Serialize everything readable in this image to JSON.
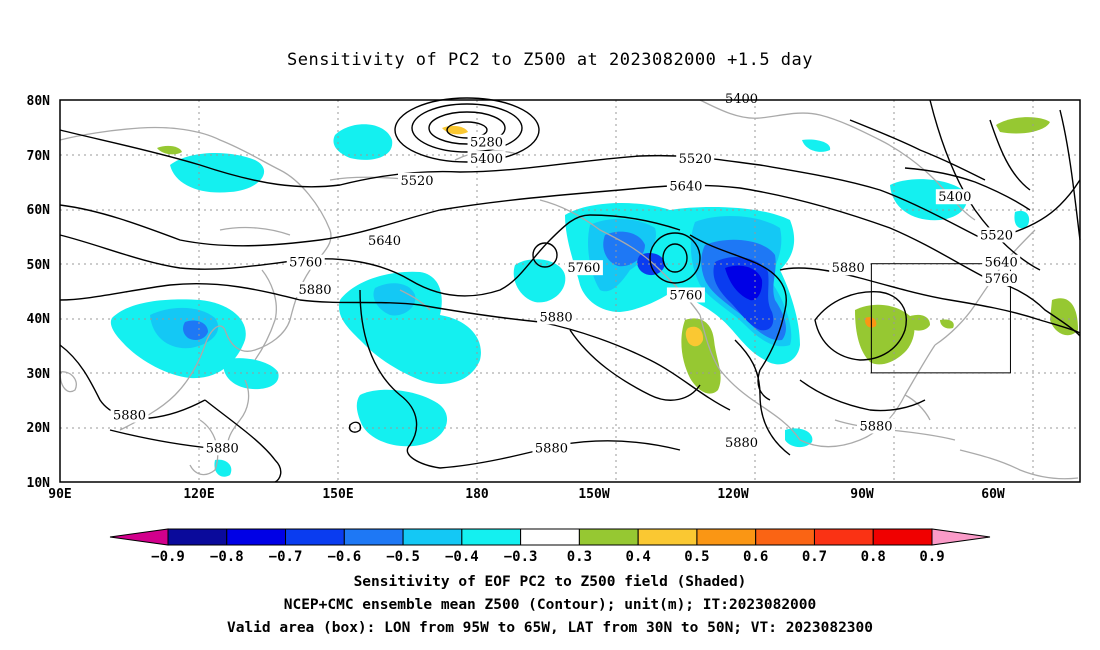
{
  "title": "Sensitivity of PC2 to Z500 at 2023082000 +1.5 day",
  "map": {
    "lat_labels": [
      "80N",
      "70N",
      "60N",
      "50N",
      "40N",
      "30N",
      "20N",
      "10N"
    ],
    "lon_labels": [
      "90E",
      "120E",
      "150E",
      "180",
      "150W",
      "120W",
      "90W",
      "60W"
    ],
    "lon_extent": [
      90,
      310
    ],
    "lat_extent": [
      10,
      80
    ],
    "contour_labels": [
      {
        "text": "5400",
        "lon": 237,
        "lat": 80
      },
      {
        "text": "5280",
        "lon": 182,
        "lat": 72
      },
      {
        "text": "5400",
        "lon": 182,
        "lat": 69
      },
      {
        "text": "5520",
        "lon": 227,
        "lat": 69
      },
      {
        "text": "5520",
        "lon": 167,
        "lat": 65
      },
      {
        "text": "5640",
        "lon": 225,
        "lat": 64
      },
      {
        "text": "5400",
        "lon": 283,
        "lat": 62
      },
      {
        "text": "5640",
        "lon": 160,
        "lat": 54
      },
      {
        "text": "5520",
        "lon": 292,
        "lat": 55
      },
      {
        "text": "5760",
        "lon": 143,
        "lat": 50
      },
      {
        "text": "5760",
        "lon": 203,
        "lat": 49
      },
      {
        "text": "5880",
        "lon": 260,
        "lat": 49
      },
      {
        "text": "5640",
        "lon": 293,
        "lat": 50
      },
      {
        "text": "5760",
        "lon": 225,
        "lat": 44
      },
      {
        "text": "5760",
        "lon": 293,
        "lat": 47
      },
      {
        "text": "5880",
        "lon": 145,
        "lat": 45
      },
      {
        "text": "5880",
        "lon": 197,
        "lat": 40
      },
      {
        "text": "5880",
        "lon": 105,
        "lat": 22
      },
      {
        "text": "5880",
        "lon": 125,
        "lat": 16
      },
      {
        "text": "5880",
        "lon": 196,
        "lat": 16
      },
      {
        "text": "5880",
        "lon": 237,
        "lat": 17
      },
      {
        "text": "5880",
        "lon": 266,
        "lat": 20
      }
    ],
    "valid_box": {
      "lon": [
        265,
        295
      ],
      "lat": [
        30,
        50
      ]
    }
  },
  "colorbar": {
    "labels": [
      "-0.9",
      "-0.8",
      "-0.7",
      "-0.6",
      "-0.5",
      "-0.4",
      "-0.3",
      "0.3",
      "0.4",
      "0.5",
      "0.6",
      "0.7",
      "0.8",
      "0.9"
    ],
    "colors": [
      "#d2008c",
      "#0a0a9b",
      "#0000e6",
      "#0a3cf0",
      "#1e78f5",
      "#14c8f5",
      "#14f0f0",
      "#ffffff",
      "#96c832",
      "#fac832",
      "#fa9614",
      "#fa6414",
      "#fa3214",
      "#f00000",
      "#fa9bc8"
    ]
  },
  "captions": {
    "line1": "Sensitivity of EOF PC2 to Z500 field (Shaded)",
    "line2": "NCEP+CMC ensemble mean Z500 (Contour); unit(m); IT:2023082000",
    "line3": "Valid area (box): LON from 95W to 65W, LAT from 30N to 50N; VT: 2023082300"
  }
}
